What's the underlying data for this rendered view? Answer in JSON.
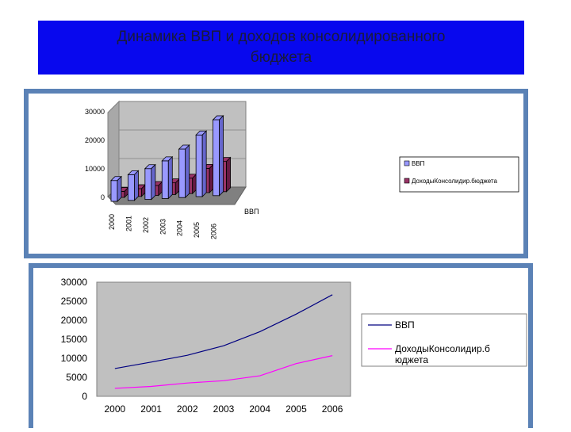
{
  "page": {
    "title": "Динамика ВВП и доходов консолидированного\nбюджета"
  },
  "colors": {
    "banner": "#0808ee",
    "panel_border": "#5b82b6",
    "plot_bg": "#c0c0c0",
    "gdp_bar": "#9999ff",
    "budget_bar": "#993366",
    "gdp_line": "#000080",
    "budget_line": "#ff00ff"
  },
  "chart_data": [
    {
      "type": "bar",
      "style": "3d",
      "categories": [
        "2000",
        "2001",
        "2002",
        "2003",
        "2004",
        "2005",
        "2006"
      ],
      "series": [
        {
          "name": "ВВП",
          "values": [
            7300,
            9000,
            10800,
            13200,
            17000,
            21600,
            26600
          ]
        },
        {
          "name": "ДоходыКонсолидир.бюджета",
          "values": [
            2100,
            2700,
            3500,
            4100,
            5400,
            8500,
            10600
          ]
        }
      ],
      "yticks": [
        "0",
        "10000",
        "20000",
        "30000"
      ],
      "ylim": [
        0,
        30000
      ],
      "depth_label": "ВВП",
      "legend": "right"
    },
    {
      "type": "line",
      "categories": [
        "2000",
        "2001",
        "2002",
        "2003",
        "2004",
        "2005",
        "2006"
      ],
      "series": [
        {
          "name": "ВВП",
          "values": [
            7300,
            9000,
            10800,
            13300,
            17000,
            21600,
            26700
          ]
        },
        {
          "name": "ДоходыКонсолидир.б\nюджета",
          "values": [
            2100,
            2600,
            3500,
            4100,
            5400,
            8600,
            10700
          ]
        }
      ],
      "yticks": [
        "0",
        "5000",
        "10000",
        "15000",
        "20000",
        "25000",
        "30000"
      ],
      "ylim": [
        0,
        30000
      ],
      "legend": "right"
    }
  ]
}
